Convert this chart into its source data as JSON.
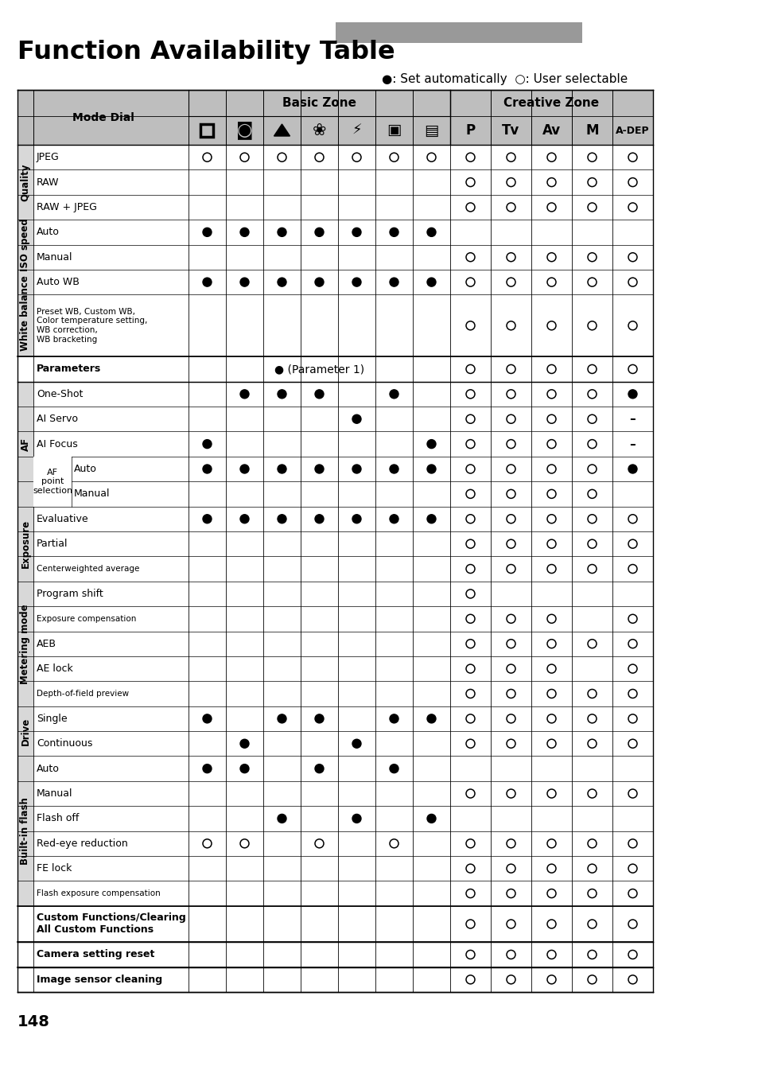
{
  "title": "Function Availability Table",
  "page_num": "148",
  "legend": "●: Set automatically  ○: User selectable",
  "rows": [
    {
      "group": "Quality",
      "sub": "",
      "name": "JPEG",
      "small": false,
      "bold": false,
      "special": "",
      "cols": [
        "o",
        "o",
        "o",
        "o",
        "o",
        "o",
        "o",
        "o",
        "o",
        "o",
        "o",
        "o"
      ]
    },
    {
      "group": "Quality",
      "sub": "",
      "name": "RAW",
      "small": false,
      "bold": false,
      "special": "",
      "cols": [
        "",
        "",
        "",
        "",
        "",
        "",
        "",
        "o",
        "o",
        "o",
        "o",
        "o"
      ]
    },
    {
      "group": "Quality",
      "sub": "",
      "name": "RAW + JPEG",
      "small": false,
      "bold": false,
      "special": "",
      "cols": [
        "",
        "",
        "",
        "",
        "",
        "",
        "",
        "o",
        "o",
        "o",
        "o",
        "o"
      ]
    },
    {
      "group": "ISO speed",
      "sub": "",
      "name": "Auto",
      "small": false,
      "bold": false,
      "special": "",
      "cols": [
        "f",
        "f",
        "f",
        "f",
        "f",
        "f",
        "f",
        "",
        "",
        "",
        "",
        ""
      ]
    },
    {
      "group": "ISO speed",
      "sub": "",
      "name": "Manual",
      "small": false,
      "bold": false,
      "special": "",
      "cols": [
        "",
        "",
        "",
        "",
        "",
        "",
        "",
        "o",
        "o",
        "o",
        "o",
        "o"
      ]
    },
    {
      "group": "White balance",
      "sub": "",
      "name": "Auto WB",
      "small": false,
      "bold": false,
      "special": "",
      "cols": [
        "f",
        "f",
        "f",
        "f",
        "f",
        "f",
        "f",
        "o",
        "o",
        "o",
        "o",
        "o"
      ]
    },
    {
      "group": "White balance",
      "sub": "",
      "name": "Preset WB, Custom WB,\nColor temperature setting,\nWB correction,\nWB bracketing",
      "small": true,
      "bold": false,
      "special": "",
      "cols": [
        "",
        "",
        "",
        "",
        "",
        "",
        "",
        "o",
        "o",
        "o",
        "o",
        "o"
      ]
    },
    {
      "group": "",
      "sub": "",
      "name": "Parameters",
      "small": false,
      "bold": true,
      "special": "param",
      "cols": [
        "",
        "",
        "",
        "",
        "",
        "",
        "",
        "o",
        "o",
        "o",
        "o",
        "o"
      ]
    },
    {
      "group": "AF",
      "sub": "",
      "name": "One-Shot",
      "small": false,
      "bold": false,
      "special": "",
      "cols": [
        "",
        "f",
        "f",
        "f",
        "",
        "f",
        "",
        "o",
        "o",
        "o",
        "o",
        "f"
      ]
    },
    {
      "group": "AF",
      "sub": "",
      "name": "AI Servo",
      "small": false,
      "bold": false,
      "special": "",
      "cols": [
        "",
        "",
        "",
        "",
        "f",
        "",
        "",
        "o",
        "o",
        "o",
        "o",
        "-"
      ]
    },
    {
      "group": "AF",
      "sub": "",
      "name": "AI Focus",
      "small": false,
      "bold": false,
      "special": "",
      "cols": [
        "f",
        "",
        "",
        "",
        "",
        "",
        "f",
        "o",
        "o",
        "o",
        "o",
        "-"
      ]
    },
    {
      "group": "AF",
      "sub": "AF\npoint\nselection",
      "name": "Auto",
      "small": false,
      "bold": false,
      "special": "",
      "cols": [
        "f",
        "f",
        "f",
        "f",
        "f",
        "f",
        "f",
        "o",
        "o",
        "o",
        "o",
        "f"
      ]
    },
    {
      "group": "AF",
      "sub": "AF\npoint\nselection",
      "name": "Manual",
      "small": false,
      "bold": false,
      "special": "",
      "cols": [
        "",
        "",
        "",
        "",
        "",
        "",
        "",
        "o",
        "o",
        "o",
        "o",
        ""
      ]
    },
    {
      "group": "Exposure",
      "sub": "",
      "name": "Evaluative",
      "small": false,
      "bold": false,
      "special": "",
      "cols": [
        "f",
        "f",
        "f",
        "f",
        "f",
        "f",
        "f",
        "o",
        "o",
        "o",
        "o",
        "o"
      ]
    },
    {
      "group": "Exposure",
      "sub": "",
      "name": "Partial",
      "small": false,
      "bold": false,
      "special": "",
      "cols": [
        "",
        "",
        "",
        "",
        "",
        "",
        "",
        "o",
        "o",
        "o",
        "o",
        "o"
      ]
    },
    {
      "group": "Exposure",
      "sub": "",
      "name": "Centerweighted average",
      "small": true,
      "bold": false,
      "special": "",
      "cols": [
        "",
        "",
        "",
        "",
        "",
        "",
        "",
        "o",
        "o",
        "o",
        "o",
        "o"
      ]
    },
    {
      "group": "Metering mode",
      "sub": "",
      "name": "Program shift",
      "small": false,
      "bold": false,
      "special": "",
      "cols": [
        "",
        "",
        "",
        "",
        "",
        "",
        "",
        "o",
        "",
        "",
        "",
        ""
      ]
    },
    {
      "group": "Metering mode",
      "sub": "",
      "name": "Exposure compensation",
      "small": true,
      "bold": false,
      "special": "",
      "cols": [
        "",
        "",
        "",
        "",
        "",
        "",
        "",
        "o",
        "o",
        "o",
        "",
        "o"
      ]
    },
    {
      "group": "Metering mode",
      "sub": "",
      "name": "AEB",
      "small": false,
      "bold": false,
      "special": "",
      "cols": [
        "",
        "",
        "",
        "",
        "",
        "",
        "",
        "o",
        "o",
        "o",
        "o",
        "o"
      ]
    },
    {
      "group": "Metering mode",
      "sub": "",
      "name": "AE lock",
      "small": false,
      "bold": false,
      "special": "",
      "cols": [
        "",
        "",
        "",
        "",
        "",
        "",
        "",
        "o",
        "o",
        "o",
        "",
        "o"
      ]
    },
    {
      "group": "Metering mode",
      "sub": "",
      "name": "Depth-of-field preview",
      "small": true,
      "bold": false,
      "special": "",
      "cols": [
        "",
        "",
        "",
        "",
        "",
        "",
        "",
        "o",
        "o",
        "o",
        "o",
        "o"
      ]
    },
    {
      "group": "Drive",
      "sub": "",
      "name": "Single",
      "small": false,
      "bold": false,
      "special": "",
      "cols": [
        "f",
        "",
        "f",
        "f",
        "",
        "f",
        "f",
        "o",
        "o",
        "o",
        "o",
        "o"
      ]
    },
    {
      "group": "Drive",
      "sub": "",
      "name": "Continuous",
      "small": false,
      "bold": false,
      "special": "",
      "cols": [
        "",
        "f",
        "",
        "",
        "f",
        "",
        "",
        "o",
        "o",
        "o",
        "o",
        "o"
      ]
    },
    {
      "group": "Built-in flash",
      "sub": "",
      "name": "Auto",
      "small": false,
      "bold": false,
      "special": "",
      "cols": [
        "f",
        "f",
        "",
        "f",
        "",
        "f",
        "",
        "",
        "",
        "",
        "",
        ""
      ]
    },
    {
      "group": "Built-in flash",
      "sub": "",
      "name": "Manual",
      "small": false,
      "bold": false,
      "special": "",
      "cols": [
        "",
        "",
        "",
        "",
        "",
        "",
        "",
        "o",
        "o",
        "o",
        "o",
        "o"
      ]
    },
    {
      "group": "Built-in flash",
      "sub": "",
      "name": "Flash off",
      "small": false,
      "bold": false,
      "special": "",
      "cols": [
        "",
        "",
        "f",
        "",
        "f",
        "",
        "f",
        "",
        "",
        "",
        "",
        ""
      ]
    },
    {
      "group": "Built-in flash",
      "sub": "",
      "name": "Red-eye reduction",
      "small": false,
      "bold": false,
      "special": "",
      "cols": [
        "o",
        "o",
        "",
        "o",
        "",
        "o",
        "",
        "o",
        "o",
        "o",
        "o",
        "o"
      ]
    },
    {
      "group": "Built-in flash",
      "sub": "",
      "name": "FE lock",
      "small": false,
      "bold": false,
      "special": "",
      "cols": [
        "",
        "",
        "",
        "",
        "",
        "",
        "",
        "o",
        "o",
        "o",
        "o",
        "o"
      ]
    },
    {
      "group": "Built-in flash",
      "sub": "",
      "name": "Flash exposure compensation",
      "small": true,
      "bold": false,
      "special": "",
      "cols": [
        "",
        "",
        "",
        "",
        "",
        "",
        "",
        "o",
        "o",
        "o",
        "o",
        "o"
      ]
    },
    {
      "group": "",
      "sub": "",
      "name": "Custom Functions/Clearing\nAll Custom Functions",
      "small": false,
      "bold": true,
      "special": "",
      "cols": [
        "",
        "",
        "",
        "",
        "",
        "",
        "",
        "o",
        "o",
        "o",
        "o",
        "o"
      ]
    },
    {
      "group": "",
      "sub": "",
      "name": "Camera setting reset",
      "small": false,
      "bold": true,
      "special": "",
      "cols": [
        "",
        "",
        "",
        "",
        "",
        "",
        "",
        "o",
        "o",
        "o",
        "o",
        "o"
      ]
    },
    {
      "group": "",
      "sub": "",
      "name": "Image sensor cleaning",
      "small": false,
      "bold": true,
      "special": "",
      "cols": [
        "",
        "",
        "",
        "",
        "",
        "",
        "",
        "o",
        "o",
        "o",
        "o",
        "o"
      ]
    }
  ]
}
